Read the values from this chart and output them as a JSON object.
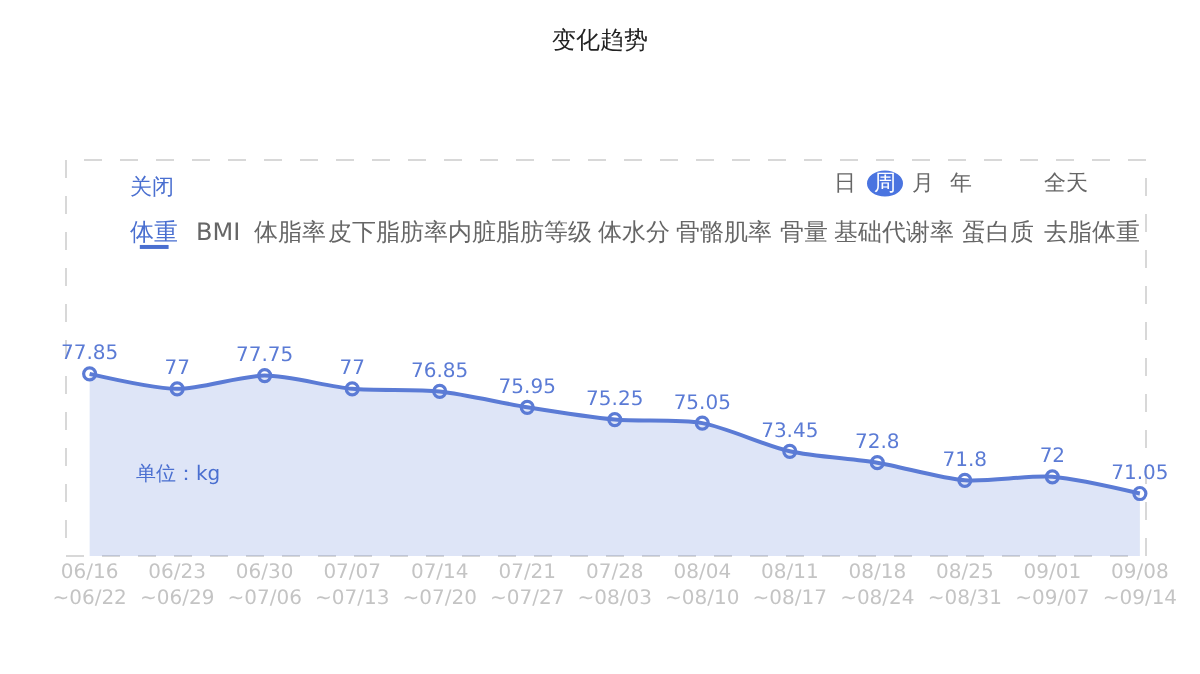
{
  "chart_data": {
    "type": "area",
    "title": "变化趋势",
    "categories": [
      "06/16\n~06/22",
      "06/23\n~06/29",
      "06/30\n~07/06",
      "07/07\n~07/13",
      "07/14\n~07/20",
      "07/21\n~07/27",
      "07/28\n~08/03",
      "08/04\n~08/10",
      "08/11\n~08/17",
      "08/18\n~08/24",
      "08/25\n~08/31",
      "09/01\n~09/07",
      "09/08\n~09/14"
    ],
    "series": [
      {
        "color": "#5b7bd5",
        "values": [
          77.85,
          77,
          77.75,
          77,
          76.85,
          75.95,
          75.25,
          75.05,
          73.45,
          72.8,
          71.8,
          72,
          71.05
        ]
      }
    ],
    "ylim": [
      67.5,
      90
    ],
    "data_labels": true,
    "marker": "circle",
    "grid": false,
    "legend": false,
    "tick_labels": "x",
    "annotations": [
      "关闭",
      "日",
      "周",
      "月",
      "年",
      "全天",
      "体重",
      "BMI",
      "体脂率",
      "皮下脂肪率",
      "内脏脂肪等级",
      "体水分",
      "骨骼肌率",
      "骨量",
      "基础代谢率",
      "蛋白质",
      "去脂体重",
      "单位：kg"
    ]
  }
}
